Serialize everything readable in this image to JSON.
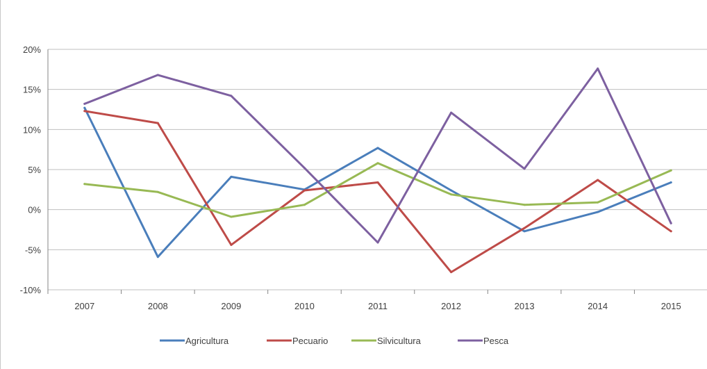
{
  "chart_data": {
    "type": "line",
    "title": "",
    "xlabel": "",
    "ylabel": "",
    "categories": [
      "2007",
      "2008",
      "2009",
      "2010",
      "2011",
      "2012",
      "2013",
      "2014",
      "2015"
    ],
    "ylim": [
      -10,
      20
    ],
    "yticks": [
      20,
      15,
      10,
      5,
      0,
      -5,
      -10
    ],
    "ytick_labels": [
      "20%",
      "15%",
      "10%",
      "5%",
      "0%",
      "-5%",
      "-10%"
    ],
    "grid": true,
    "legend_position": "bottom",
    "series": [
      {
        "name": "Agricultura",
        "color": "#4a7ebb",
        "values": [
          12.7,
          -5.9,
          4.1,
          2.5,
          7.7,
          2.4,
          -2.7,
          -0.3,
          3.4
        ]
      },
      {
        "name": "Pecuario",
        "color": "#be4b48",
        "values": [
          12.3,
          10.8,
          -4.4,
          2.4,
          3.4,
          -7.8,
          -2.3,
          3.7,
          -2.7
        ]
      },
      {
        "name": "Silvicultura",
        "color": "#98b954",
        "values": [
          3.2,
          2.2,
          -0.9,
          0.6,
          5.8,
          1.9,
          0.6,
          0.9,
          4.9
        ]
      },
      {
        "name": "Pesca",
        "color": "#7d60a0",
        "values": [
          13.2,
          16.8,
          14.2,
          5.2,
          -4.1,
          12.1,
          5.1,
          17.6,
          -1.7
        ]
      }
    ]
  }
}
